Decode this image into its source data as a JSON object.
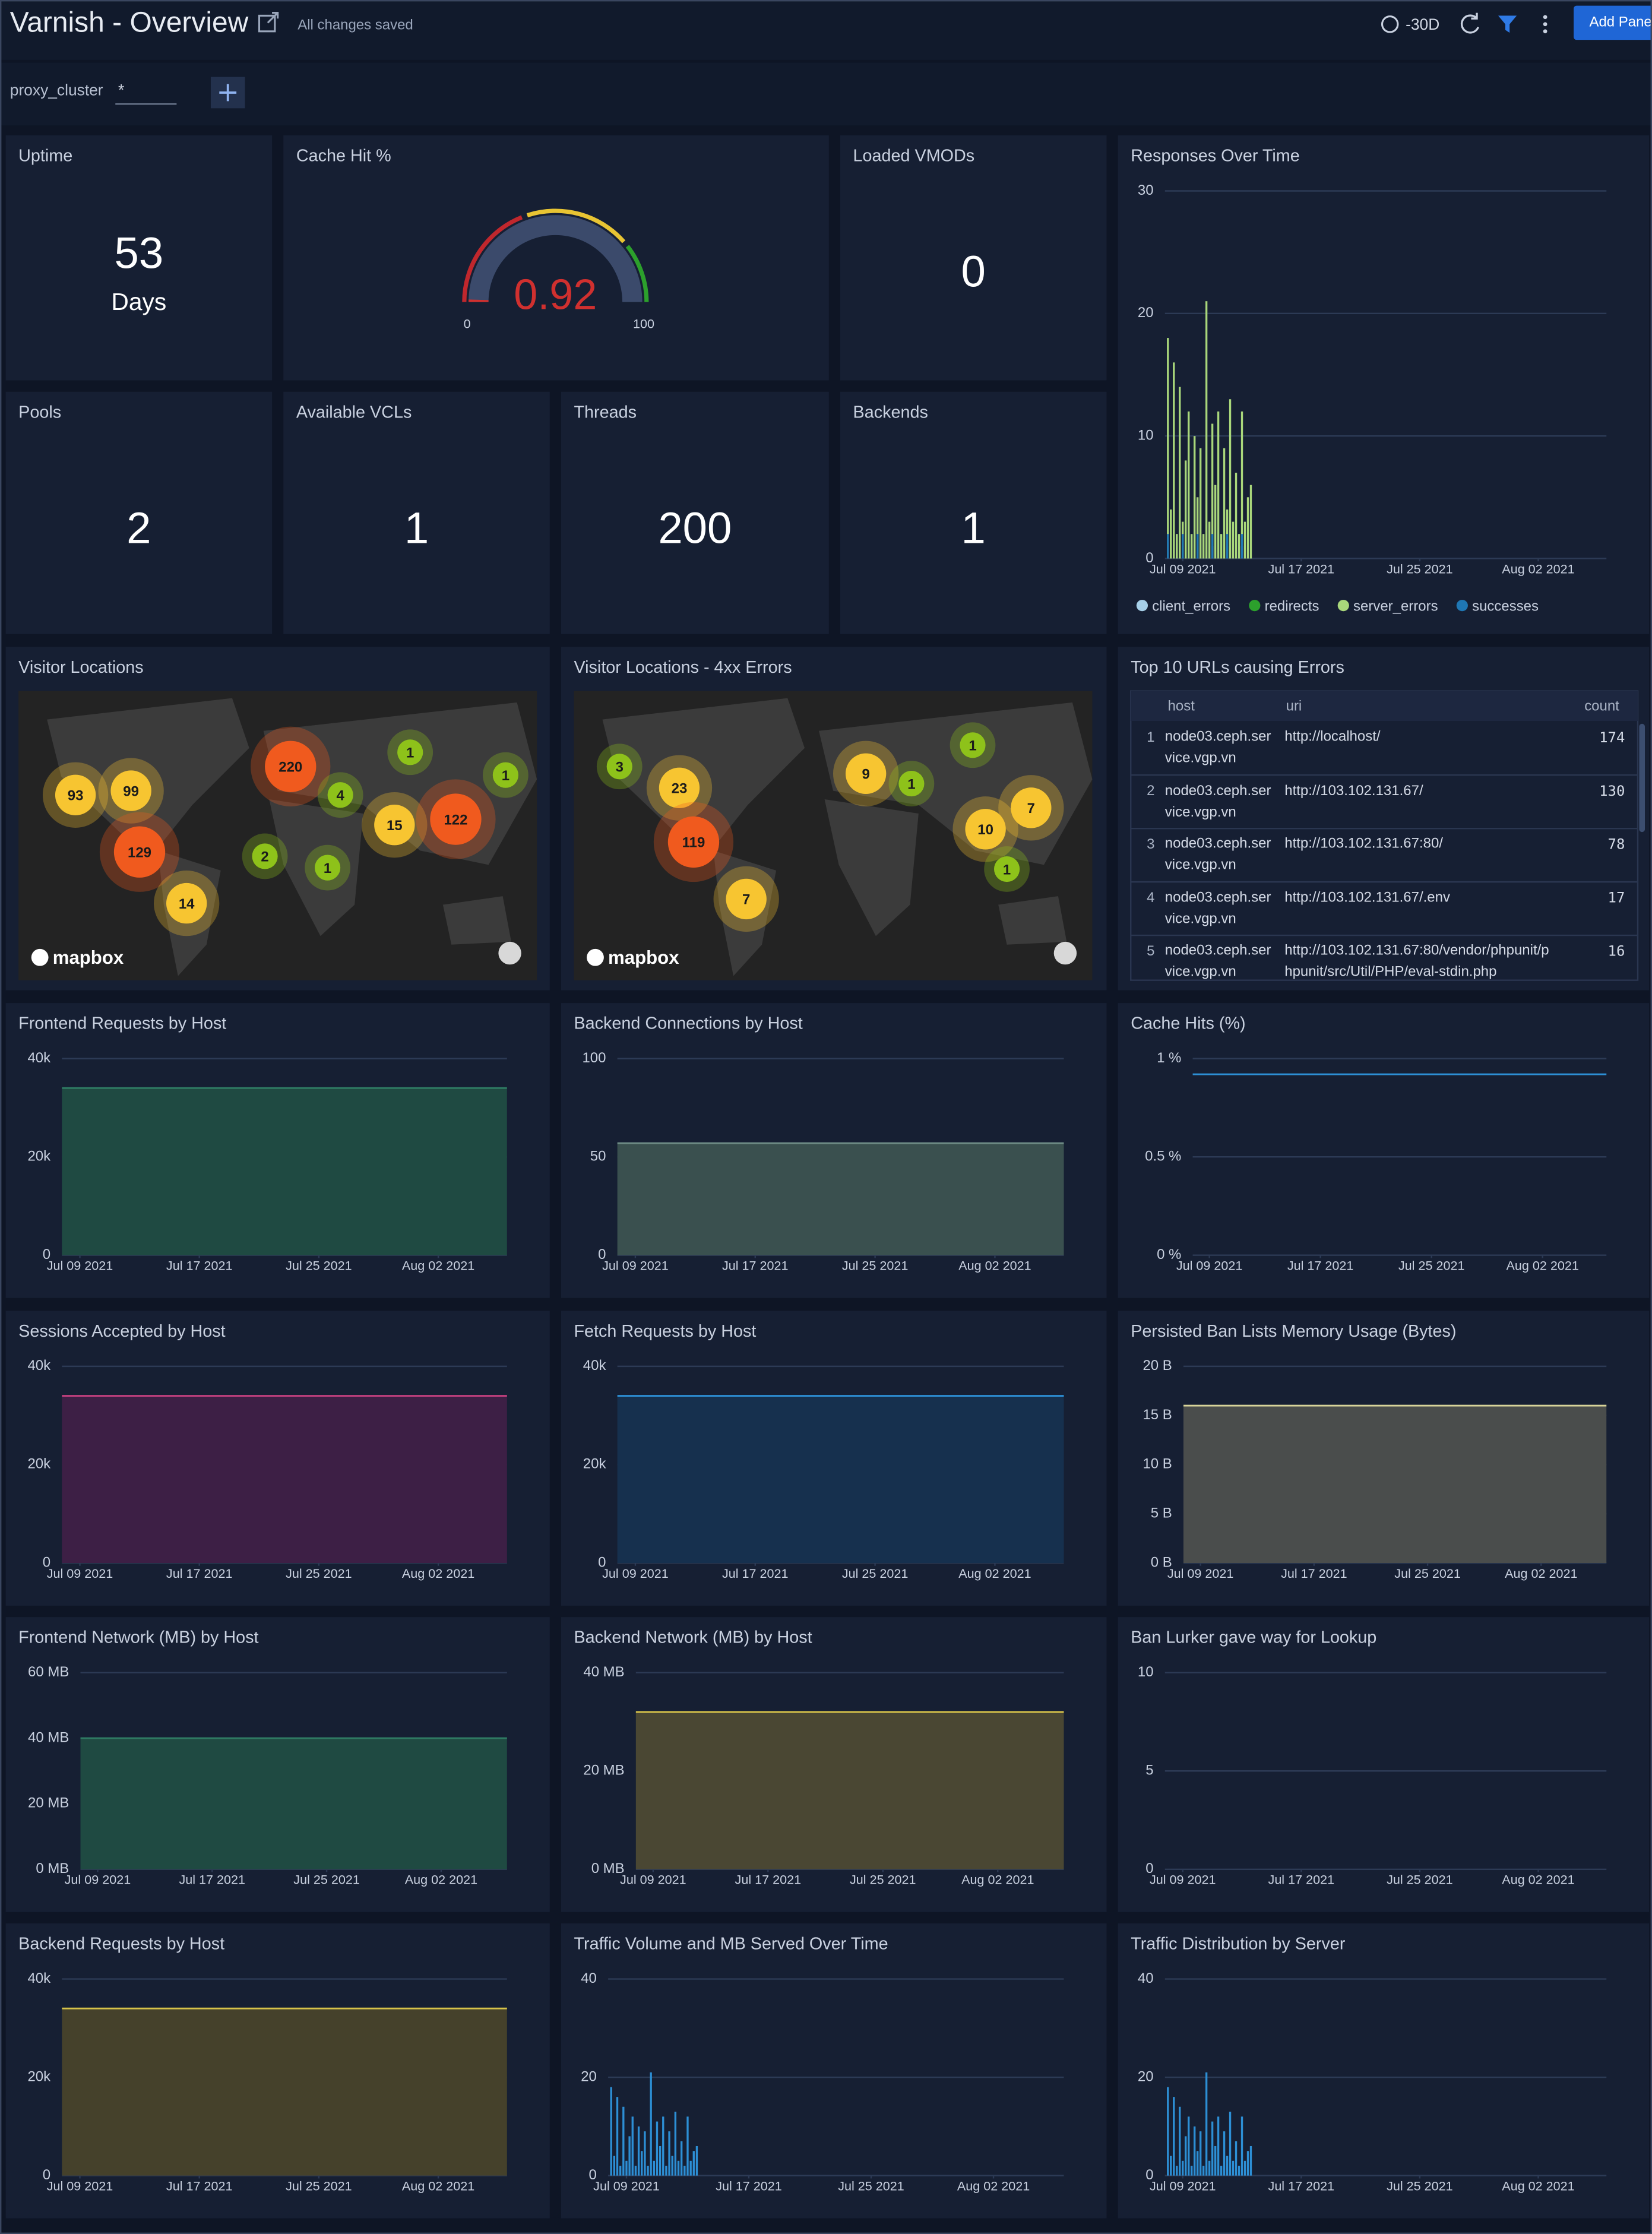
{
  "header": {
    "title": "Varnish - Overview",
    "status": "All changes saved",
    "time_range": "-30D",
    "button": "Add Panel"
  },
  "filter": {
    "label": "proxy_cluster",
    "value": "*"
  },
  "stats": [
    {
      "title": "Uptime",
      "value": 53,
      "unit": "Days"
    },
    {
      "title": "Loaded VMODs",
      "value": 0
    },
    {
      "title": "Pools",
      "value": 2
    },
    {
      "title": "Available VCLs",
      "value": 1
    },
    {
      "title": "Threads",
      "value": 200
    },
    {
      "title": "Backends",
      "value": 1
    }
  ],
  "gauge": {
    "title": "Cache Hit %",
    "value": 0.92,
    "min": 0,
    "max": 100
  },
  "maps": [
    {
      "title": "Visitor Locations",
      "attribution": "mapbox",
      "markers": [
        220,
        99,
        93,
        129,
        14,
        4,
        1,
        2,
        1,
        15,
        122,
        1
      ]
    },
    {
      "title": "Visitor Locations - 4xx Errors",
      "attribution": "mapbox",
      "markers": [
        3,
        23,
        119,
        7,
        9,
        1,
        1,
        10,
        7,
        1
      ]
    }
  ],
  "table": {
    "title": "Top 10 URLs causing Errors",
    "columns": [
      "host",
      "uri",
      "count"
    ],
    "rows": [
      {
        "rank": 1,
        "host": "node03.ceph.service.vgp.vn",
        "uri": "http://localhost/",
        "count": 174
      },
      {
        "rank": 2,
        "host": "node03.ceph.service.vgp.vn",
        "uri": "http://103.102.131.67/",
        "count": 130
      },
      {
        "rank": 3,
        "host": "node03.ceph.service.vgp.vn",
        "uri": "http://103.102.131.67:80/",
        "count": 78
      },
      {
        "rank": 4,
        "host": "node03.ceph.service.vgp.vn",
        "uri": "http://103.102.131.67/.env",
        "count": 17
      },
      {
        "rank": 5,
        "host": "node03.ceph.service.vgp.vn",
        "uri": "http://103.102.131.67:80/vendor/phpunit/phpunit/src/Util/PHP/eval-stdin.php",
        "count": 16
      }
    ]
  },
  "charts": [
    {
      "type": "bar",
      "title": "Responses Over Time",
      "legend": true,
      "xlim": [
        -1.2,
        28.6
      ],
      "ylim": [
        0,
        30
      ],
      "yticks": [
        0,
        10,
        20,
        30
      ],
      "xticks": [
        {
          "value": 0,
          "label": "Jul 09 2021"
        },
        {
          "value": 8,
          "label": "Jul 17 2021"
        },
        {
          "value": 16,
          "label": "Jul 25 2021"
        },
        {
          "value": 24,
          "label": "Aug 02 2021"
        }
      ],
      "series": [
        {
          "name": "client_errors",
          "color": "#a6cfe8",
          "x": [
            0,
            2,
            4
          ],
          "values": [
            1,
            1,
            1
          ]
        },
        {
          "name": "redirects",
          "color": "#2ca02c",
          "x": [
            1,
            3
          ],
          "values": [
            1,
            1
          ]
        },
        {
          "name": "server_errors",
          "color": "#a9d77b",
          "x": [
            -1,
            -0.8,
            -0.6,
            -0.4,
            -0.2,
            0,
            0.2,
            0.4,
            0.6,
            0.8,
            1,
            1.2,
            1.4,
            1.6,
            1.8,
            2,
            2.2,
            2.4,
            2.6,
            2.8,
            3,
            3.2,
            3.4,
            3.6,
            3.8,
            4,
            4.2,
            4.4,
            4.6
          ],
          "values": [
            18,
            4,
            16,
            2,
            14,
            3,
            8,
            12,
            2,
            10,
            5,
            9,
            2,
            21,
            3,
            11,
            6,
            12,
            2,
            9,
            4,
            13,
            3,
            7,
            2,
            12,
            3,
            5,
            6
          ]
        },
        {
          "name": "successes",
          "color": "#1f77b4",
          "x": [
            -1,
            0,
            1,
            2,
            3,
            4
          ],
          "values": [
            2,
            2,
            2,
            2,
            2,
            2
          ]
        }
      ]
    },
    {
      "type": "area",
      "title": "Frontend Requests by Host",
      "xlim": [
        -1.2,
        28.6
      ],
      "ylim": [
        0,
        40000
      ],
      "yticks": [
        0,
        {
          "value": 20000,
          "label": "20k"
        },
        {
          "value": 40000,
          "label": "40k"
        }
      ],
      "xticks": [
        {
          "value": 0,
          "label": "Jul 09 2021"
        },
        {
          "value": 8,
          "label": "Jul 17 2021"
        },
        {
          "value": 16,
          "label": "Jul 25 2021"
        },
        {
          "value": 24,
          "label": "Aug 02 2021"
        }
      ],
      "series": [
        {
          "color": "#2f7a63",
          "fill": "#1f4a42",
          "x": [
            -1.2,
            28.6
          ],
          "values": [
            34000,
            34000
          ]
        }
      ]
    },
    {
      "type": "area",
      "title": "Backend Connections by Host",
      "xlim": [
        -1.2,
        28.6
      ],
      "ylim": [
        0,
        100
      ],
      "yticks": [
        0,
        50,
        100
      ],
      "xticks": [
        {
          "value": 0,
          "label": "Jul 09 2021"
        },
        {
          "value": 8,
          "label": "Jul 17 2021"
        },
        {
          "value": 16,
          "label": "Jul 25 2021"
        },
        {
          "value": 24,
          "label": "Aug 02 2021"
        }
      ],
      "series": [
        {
          "color": "#6e8c86",
          "fill": "#3a504f",
          "x": [
            -1.2,
            28.6
          ],
          "values": [
            57,
            57
          ]
        }
      ]
    },
    {
      "type": "line",
      "title": "Cache Hits (%)",
      "xlim": [
        -1.2,
        28.6
      ],
      "ylim": [
        0,
        1
      ],
      "yticks": [
        {
          "value": 0,
          "label": "0 %"
        },
        {
          "value": 0.5,
          "label": "0.5 %"
        },
        {
          "value": 1,
          "label": "1 %"
        }
      ],
      "xticks": [
        {
          "value": 0,
          "label": "Jul 09 2021"
        },
        {
          "value": 8,
          "label": "Jul 17 2021"
        },
        {
          "value": 16,
          "label": "Jul 25 2021"
        },
        {
          "value": 24,
          "label": "Aug 02 2021"
        }
      ],
      "series": [
        {
          "color": "#2d8fd5",
          "x": [
            -1.2,
            28.6
          ],
          "values": [
            0.92,
            0.92
          ]
        }
      ]
    },
    {
      "type": "area",
      "title": "Sessions Accepted by Host",
      "xlim": [
        -1.2,
        28.6
      ],
      "ylim": [
        0,
        40000
      ],
      "yticks": [
        0,
        {
          "value": 20000,
          "label": "20k"
        },
        {
          "value": 40000,
          "label": "40k"
        }
      ],
      "xticks": [
        {
          "value": 0,
          "label": "Jul 09 2021"
        },
        {
          "value": 8,
          "label": "Jul 17 2021"
        },
        {
          "value": 16,
          "label": "Jul 25 2021"
        },
        {
          "value": 24,
          "label": "Aug 02 2021"
        }
      ],
      "series": [
        {
          "color": "#c2407e",
          "fill": "#3d1f45",
          "x": [
            -1.2,
            28.6
          ],
          "values": [
            34000,
            34000
          ]
        }
      ]
    },
    {
      "type": "area",
      "title": "Fetch Requests by Host",
      "xlim": [
        -1.2,
        28.6
      ],
      "ylim": [
        0,
        40000
      ],
      "yticks": [
        0,
        {
          "value": 20000,
          "label": "20k"
        },
        {
          "value": 40000,
          "label": "40k"
        }
      ],
      "xticks": [
        {
          "value": 0,
          "label": "Jul 09 2021"
        },
        {
          "value": 8,
          "label": "Jul 17 2021"
        },
        {
          "value": 16,
          "label": "Jul 25 2021"
        },
        {
          "value": 24,
          "label": "Aug 02 2021"
        }
      ],
      "series": [
        {
          "color": "#2d8fd5",
          "fill": "#16304e",
          "x": [
            -1.2,
            28.6
          ],
          "values": [
            34000,
            34000
          ]
        }
      ]
    },
    {
      "type": "area",
      "title": "Persisted Ban Lists Memory Usage (Bytes)",
      "xlim": [
        -1.2,
        28.6
      ],
      "ylim": [
        0,
        20
      ],
      "yticks": [
        {
          "value": 0,
          "label": "0 B"
        },
        {
          "value": 5,
          "label": "5 B"
        },
        {
          "value": 10,
          "label": "10 B"
        },
        {
          "value": 15,
          "label": "15 B"
        },
        {
          "value": 20,
          "label": "20 B"
        }
      ],
      "xticks": [
        {
          "value": 0,
          "label": "Jul 09 2021"
        },
        {
          "value": 8,
          "label": "Jul 17 2021"
        },
        {
          "value": 16,
          "label": "Jul 25 2021"
        },
        {
          "value": 24,
          "label": "Aug 02 2021"
        }
      ],
      "series": [
        {
          "color": "#d8d49a",
          "fill": "#4a4d4c",
          "x": [
            -1.2,
            28.6
          ],
          "values": [
            16,
            16
          ]
        }
      ]
    },
    {
      "type": "area",
      "title": "Frontend Network (MB) by Host",
      "xlim": [
        -1.2,
        28.6
      ],
      "ylim": [
        0,
        60
      ],
      "yticks": [
        {
          "value": 0,
          "label": "0 MB"
        },
        {
          "value": 20,
          "label": "20 MB"
        },
        {
          "value": 40,
          "label": "40 MB"
        },
        {
          "value": 60,
          "label": "60 MB"
        }
      ],
      "xticks": [
        {
          "value": 0,
          "label": "Jul 09 2021"
        },
        {
          "value": 8,
          "label": "Jul 17 2021"
        },
        {
          "value": 16,
          "label": "Jul 25 2021"
        },
        {
          "value": 24,
          "label": "Aug 02 2021"
        }
      ],
      "series": [
        {
          "color": "#2f7a63",
          "fill": "#1f4a42",
          "x": [
            -1.2,
            28.6
          ],
          "values": [
            40,
            40
          ]
        }
      ]
    },
    {
      "type": "area",
      "title": "Backend Network (MB) by Host",
      "xlim": [
        -1.2,
        28.6
      ],
      "ylim": [
        0,
        40
      ],
      "yticks": [
        {
          "value": 0,
          "label": "0 MB"
        },
        {
          "value": 20,
          "label": "20 MB"
        },
        {
          "value": 40,
          "label": "40 MB"
        }
      ],
      "xticks": [
        {
          "value": 0,
          "label": "Jul 09 2021"
        },
        {
          "value": 8,
          "label": "Jul 17 2021"
        },
        {
          "value": 16,
          "label": "Jul 25 2021"
        },
        {
          "value": 24,
          "label": "Aug 02 2021"
        }
      ],
      "series": [
        {
          "color": "#d6c24a",
          "fill": "#4a4733",
          "x": [
            -1.2,
            28.6
          ],
          "values": [
            32,
            32
          ]
        }
      ]
    },
    {
      "type": "line",
      "title": "Ban Lurker gave way for Lookup",
      "xlim": [
        -1.2,
        28.6
      ],
      "ylim": [
        0,
        10
      ],
      "yticks": [
        0,
        5,
        10
      ],
      "xticks": [
        {
          "value": 0,
          "label": "Jul 09 2021"
        },
        {
          "value": 8,
          "label": "Jul 17 2021"
        },
        {
          "value": 16,
          "label": "Jul 25 2021"
        },
        {
          "value": 24,
          "label": "Aug 02 2021"
        }
      ],
      "series": []
    },
    {
      "type": "area",
      "title": "Backend Requests by Host",
      "xlim": [
        -1.2,
        28.6
      ],
      "ylim": [
        0,
        40000
      ],
      "yticks": [
        0,
        {
          "value": 20000,
          "label": "20k"
        },
        {
          "value": 40000,
          "label": "40k"
        }
      ],
      "xticks": [
        {
          "value": 0,
          "label": "Jul 09 2021"
        },
        {
          "value": 8,
          "label": "Jul 17 2021"
        },
        {
          "value": 16,
          "label": "Jul 25 2021"
        },
        {
          "value": 24,
          "label": "Aug 02 2021"
        }
      ],
      "series": [
        {
          "color": "#d6c24a",
          "fill": "#45412b",
          "x": [
            -1.2,
            28.6
          ],
          "values": [
            34000,
            34000
          ]
        }
      ]
    },
    {
      "type": "bar",
      "title": "Traffic Volume and MB Served Over Time",
      "xlim": [
        -1.2,
        28.6
      ],
      "ylim": [
        0,
        40
      ],
      "yticks": [
        0,
        20,
        40
      ],
      "xticks": [
        {
          "value": 0,
          "label": "Jul 09 2021"
        },
        {
          "value": 8,
          "label": "Jul 17 2021"
        },
        {
          "value": 16,
          "label": "Jul 25 2021"
        },
        {
          "value": 24,
          "label": "Aug 02 2021"
        }
      ],
      "series": [
        {
          "color": "#2d8fd5",
          "x": [
            -1,
            -0.8,
            -0.6,
            -0.4,
            -0.2,
            0,
            0.2,
            0.4,
            0.6,
            0.8,
            1,
            1.2,
            1.4,
            1.6,
            1.8,
            2,
            2.2,
            2.4,
            2.6,
            2.8,
            3,
            3.2,
            3.4,
            3.6,
            3.8,
            4,
            4.2,
            4.4,
            4.6
          ],
          "values": [
            18,
            4,
            16,
            2,
            14,
            3,
            8,
            12,
            2,
            10,
            5,
            9,
            2,
            21,
            3,
            11,
            6,
            12,
            2,
            9,
            4,
            13,
            3,
            7,
            2,
            12,
            3,
            5,
            6
          ]
        }
      ]
    },
    {
      "type": "bar",
      "title": "Traffic Distribution by Server",
      "xlim": [
        -1.2,
        28.6
      ],
      "ylim": [
        0,
        40
      ],
      "yticks": [
        0,
        20,
        40
      ],
      "xticks": [
        {
          "value": 0,
          "label": "Jul 09 2021"
        },
        {
          "value": 8,
          "label": "Jul 17 2021"
        },
        {
          "value": 16,
          "label": "Jul 25 2021"
        },
        {
          "value": 24,
          "label": "Aug 02 2021"
        }
      ],
      "series": [
        {
          "color": "#2d8fd5",
          "x": [
            -1,
            -0.8,
            -0.6,
            -0.4,
            -0.2,
            0,
            0.2,
            0.4,
            0.6,
            0.8,
            1,
            1.2,
            1.4,
            1.6,
            1.8,
            2,
            2.2,
            2.4,
            2.6,
            2.8,
            3,
            3.2,
            3.4,
            3.6,
            3.8,
            4,
            4.2,
            4.4,
            4.6
          ],
          "values": [
            18,
            4,
            16,
            2,
            14,
            3,
            8,
            12,
            2,
            10,
            5,
            9,
            2,
            21,
            3,
            11,
            6,
            12,
            2,
            9,
            4,
            13,
            3,
            7,
            2,
            12,
            3,
            5,
            6
          ]
        }
      ]
    }
  ]
}
